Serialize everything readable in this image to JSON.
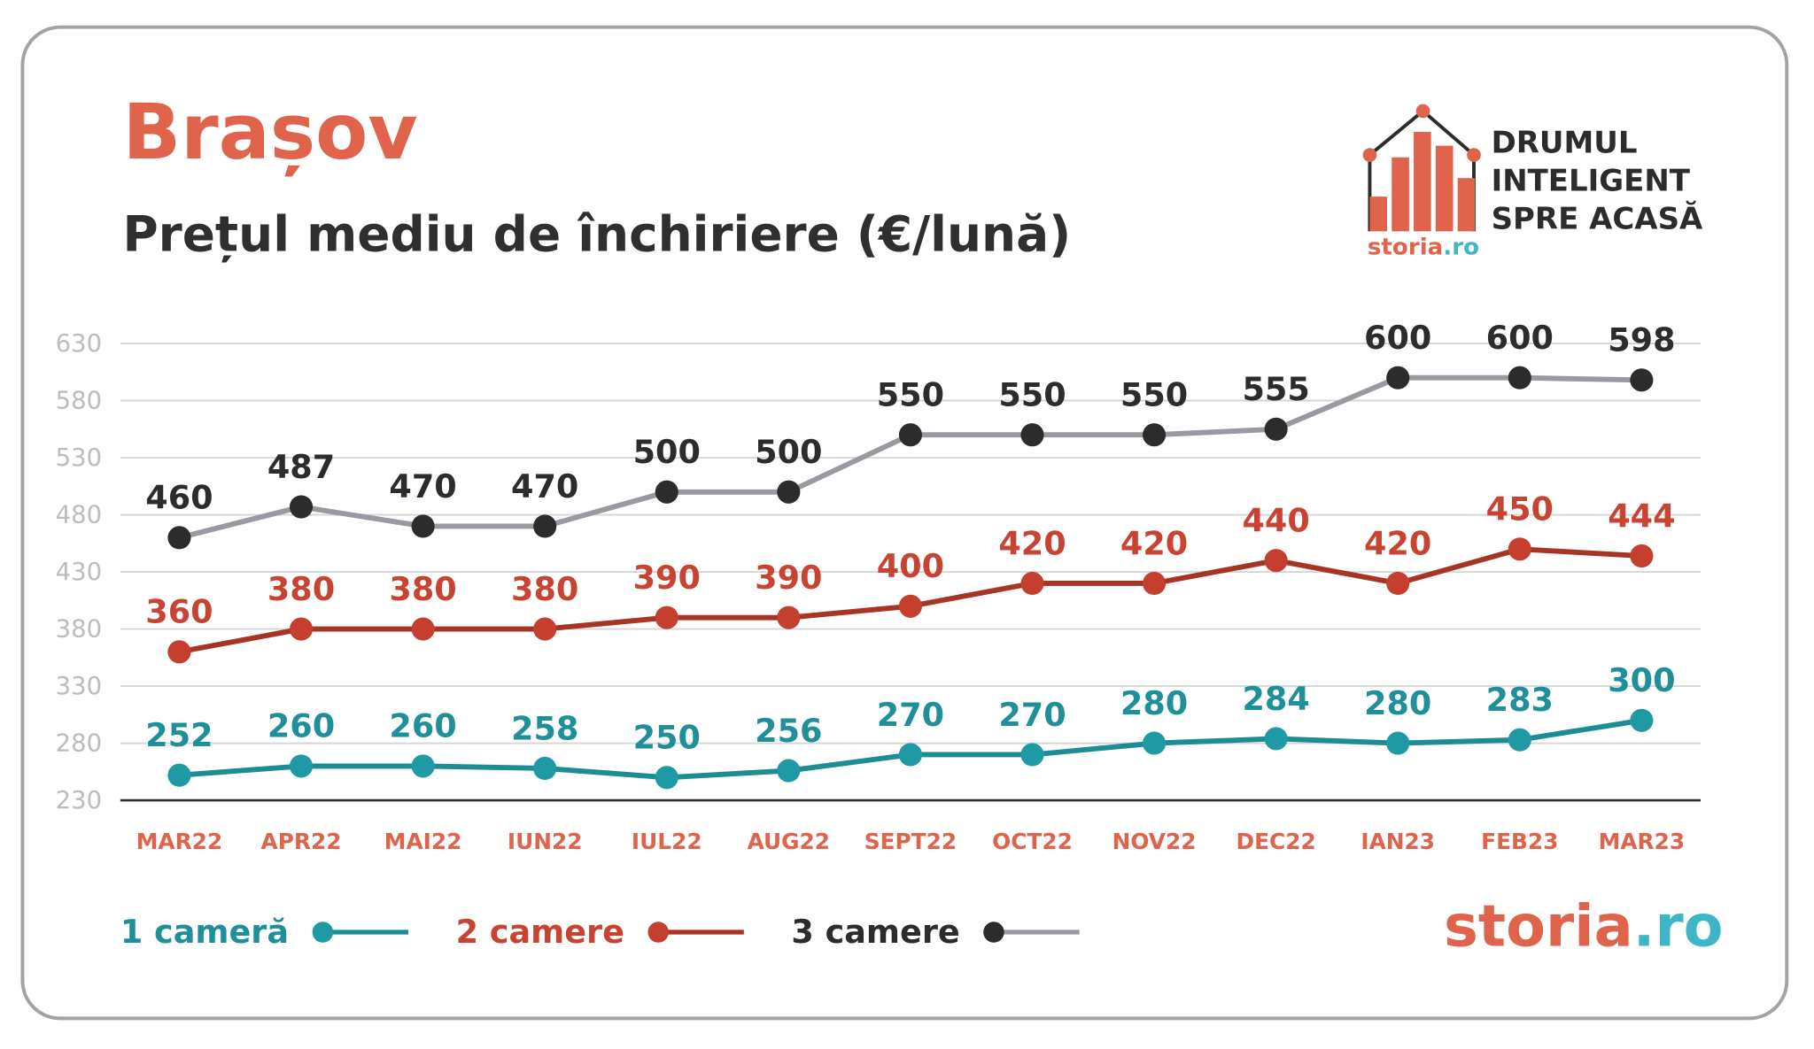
{
  "header": {
    "city": "Brașov",
    "subtitle": "Prețul mediu de închiriere (€/lună)"
  },
  "logo": {
    "tagline_lines": [
      "DRUMUL",
      "INTELIGENT",
      "SPRE ACASĂ"
    ],
    "brand_name": "storia",
    "brand_tld": ".ro",
    "brand_color": "#e0644b",
    "tld_color": "#3fb6c7"
  },
  "chart_data": {
    "type": "line",
    "title": "",
    "xlabel": "",
    "ylabel": "",
    "categories": [
      "MAR22",
      "APR22",
      "MAI22",
      "IUN22",
      "IUL22",
      "AUG22",
      "SEPT22",
      "OCT22",
      "NOV22",
      "DEC22",
      "IAN23",
      "FEB23",
      "MAR23"
    ],
    "y_ticks": [
      230,
      280,
      330,
      380,
      430,
      480,
      530,
      580,
      630
    ],
    "ylim": [
      230,
      630
    ],
    "grid": true,
    "legend_position": "bottom-left",
    "series": [
      {
        "name": "1 cameră",
        "values": [
          252,
          260,
          260,
          258,
          250,
          256,
          270,
          270,
          280,
          284,
          280,
          283,
          300
        ],
        "line_color": "#1c8c95",
        "marker_color": "#1f9aa5",
        "label_color": "#1f8f9a"
      },
      {
        "name": "2 camere",
        "values": [
          360,
          380,
          380,
          380,
          390,
          390,
          400,
          420,
          420,
          440,
          420,
          450,
          444
        ],
        "line_color": "#a83424",
        "marker_color": "#c63f2e",
        "label_color": "#c84331"
      },
      {
        "name": "3 camere",
        "values": [
          460,
          487,
          470,
          470,
          500,
          500,
          550,
          550,
          550,
          555,
          600,
          600,
          598
        ],
        "line_color": "#9c97a0",
        "marker_color": "#2c2c2c",
        "label_color": "#2c2c2c"
      }
    ],
    "colors": {
      "axis_tick_label": "#bdbdbd",
      "category_label": "#e0644b",
      "gridline": "#d6d6d6",
      "baseline": "#2c2c2c"
    }
  }
}
